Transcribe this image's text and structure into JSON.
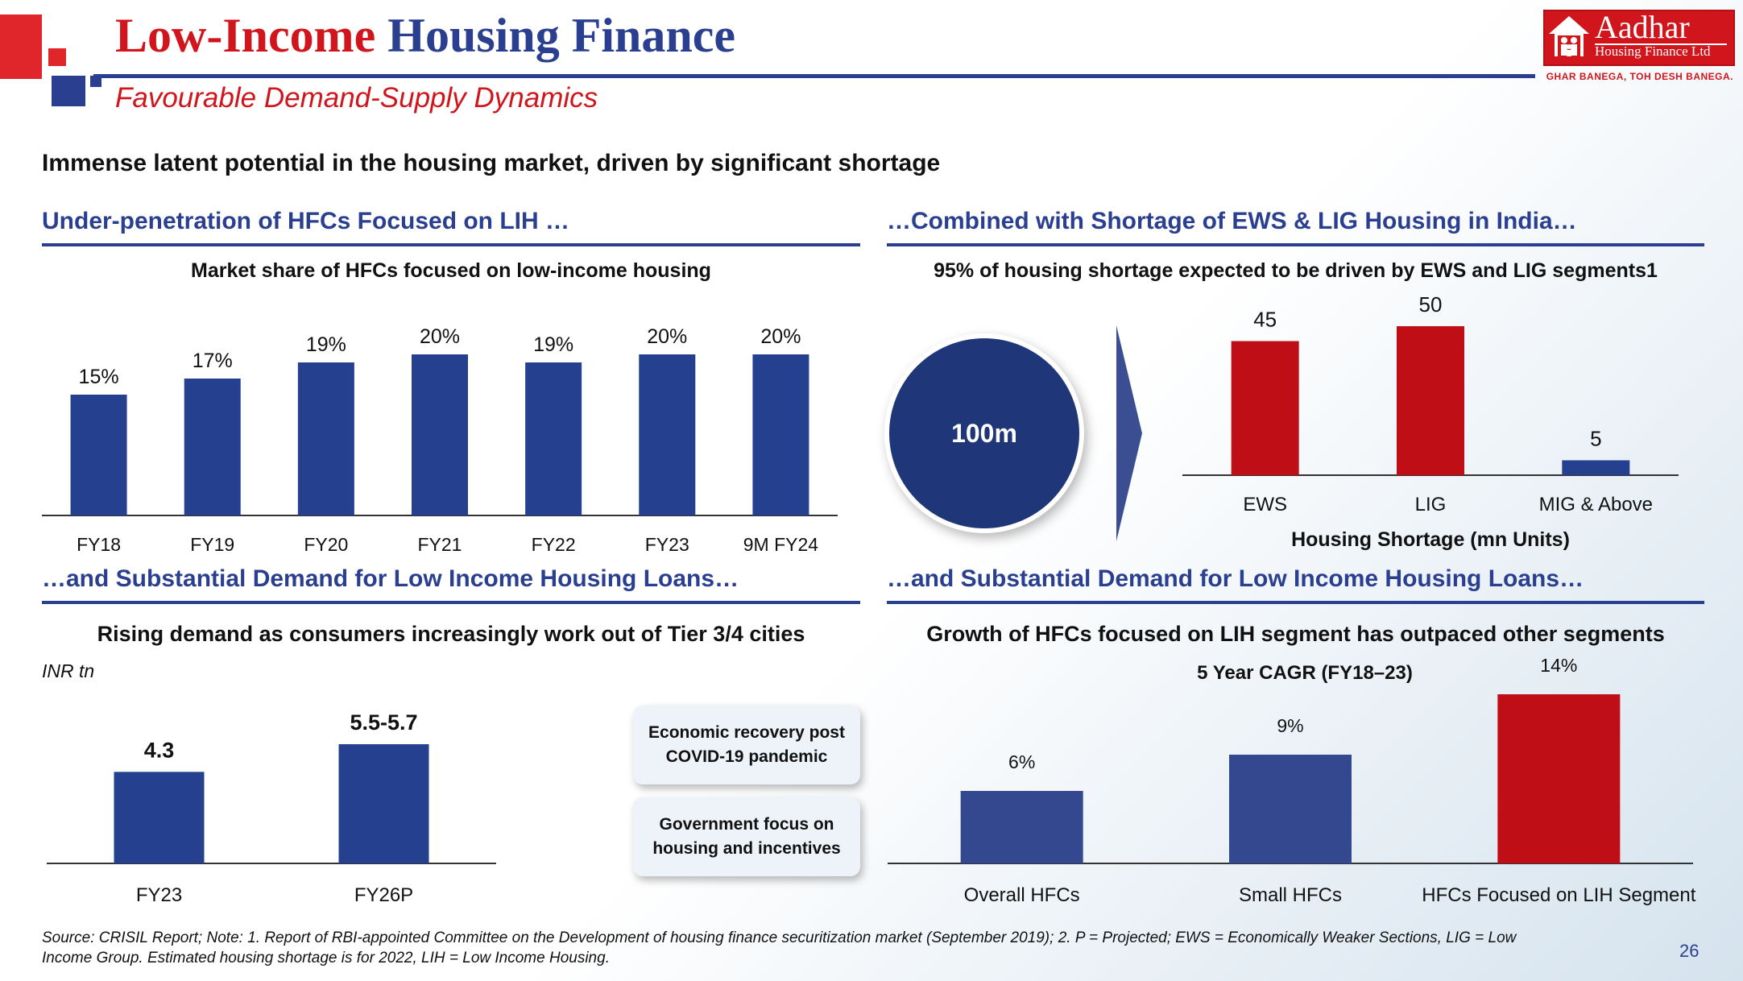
{
  "header": {
    "title_part1": "Low-Income",
    "title_part2": "Housing Finance",
    "subtitle": "Favourable Demand-Supply Dynamics",
    "page_number": "26"
  },
  "logo": {
    "name": "Aadhar",
    "sub": "Housing Finance Ltd",
    "tagline": "GHAR BANEGA, TOH DESH BANEGA."
  },
  "headline": "Immense latent potential in the housing market, driven by significant shortage",
  "sections": {
    "top_left": {
      "heading": "Under-penetration of HFCs Focused on LIH …",
      "chart_title": "Market share of HFCs focused on low-income housing"
    },
    "top_right": {
      "heading": "…Combined with Shortage of EWS & LIG Housing in India…",
      "chart_title": "95% of housing shortage expected to be driven by EWS and LIG segments1",
      "circle_value": "100m",
      "xlabel": "Housing Shortage (mn Units)"
    },
    "bottom_left": {
      "heading": "…and Substantial Demand for Low Income Housing Loans…",
      "chart_title": "Rising demand as consumers increasingly work out of Tier 3/4 cities",
      "unit": "INR tn",
      "callout1": "Economic recovery post COVID-19 pandemic",
      "callout2": "Government focus on housing and incentives"
    },
    "bottom_right": {
      "heading": "…and Substantial Demand for Low Income Housing Loans…",
      "chart_title": "Growth of HFCs focused on LIH segment has outpaced other segments",
      "sub_title": "5 Year CAGR (FY18–23)"
    }
  },
  "footnote": "Source: CRISIL Report; Note: 1. Report of RBI-appointed Committee on the Development of housing finance securitization market (September 2019); 2. P = Projected; EWS = Economically Weaker Sections, LIG = Low Income Group. Estimated housing shortage is for 2022, LIH = Low Income Housing.",
  "colors": {
    "blue": "#24408e",
    "blue2": "#33488f",
    "red": "#c00e16",
    "brand_red": "#d0161c"
  },
  "chart_data": [
    {
      "id": "market_share",
      "type": "bar",
      "title": "Market share of HFCs focused on low-income housing",
      "categories": [
        "FY18",
        "FY19",
        "FY20",
        "FY21",
        "FY22",
        "FY23",
        "9M FY24"
      ],
      "values": [
        15,
        17,
        19,
        20,
        19,
        20,
        20
      ],
      "labels": [
        "15%",
        "17%",
        "19%",
        "20%",
        "19%",
        "20%",
        "20%"
      ],
      "ylim": [
        0,
        25
      ],
      "grid": false
    },
    {
      "id": "housing_shortage",
      "type": "bar",
      "title": "95% of housing shortage expected to be driven by EWS and LIG segments1",
      "categories": [
        "EWS",
        "LIG",
        "MIG & Above"
      ],
      "values": [
        45,
        50,
        5
      ],
      "labels": [
        "45",
        "50",
        "5"
      ],
      "xlabel": "Housing Shortage (mn Units)",
      "ylim": [
        0,
        60
      ],
      "grid": false
    },
    {
      "id": "loan_demand",
      "type": "bar",
      "title": "Rising demand as consumers increasingly work out of Tier 3/4 cities",
      "ylabel": "INR tn",
      "categories": [
        "FY23",
        "FY26P"
      ],
      "values": [
        4.3,
        5.6
      ],
      "labels": [
        "4.3",
        "5.5-5.7"
      ],
      "ylim": [
        0,
        7
      ],
      "grid": false
    },
    {
      "id": "cagr",
      "type": "bar",
      "title": "5 Year CAGR (FY18–23)",
      "categories": [
        "Overall HFCs",
        "Small HFCs",
        "HFCs Focused on LIH Segment"
      ],
      "values": [
        6,
        9,
        14
      ],
      "labels": [
        "6%",
        "9%",
        "14%"
      ],
      "ylim": [
        0,
        15
      ],
      "grid": false
    }
  ]
}
